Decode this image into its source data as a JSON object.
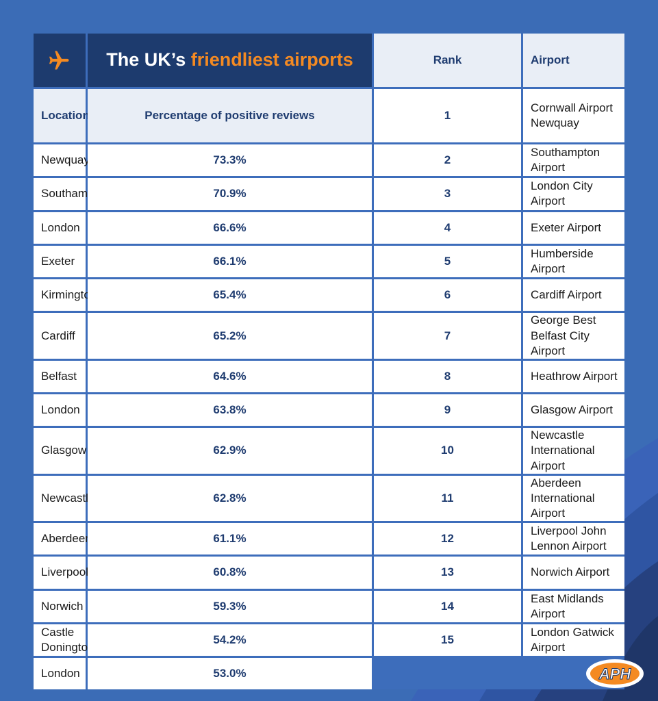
{
  "title": {
    "prefix": "The UK’s ",
    "highlight": "friendliest airports",
    "icon": "airplane-icon"
  },
  "colors": {
    "background": "#3b6cb6",
    "header": "#1d3b6e",
    "accent": "#f48a22",
    "text": "#1f3c70"
  },
  "columns": [
    "Rank",
    "Airport",
    "Location",
    "Percentage of positive reviews"
  ],
  "rows": [
    [
      "1",
      "Cornwall Airport Newquay",
      "Newquay",
      "73.3%"
    ],
    [
      "2",
      "Southampton Airport",
      "Southampton",
      "70.9%"
    ],
    [
      "3",
      "London City Airport",
      "London",
      "66.6%"
    ],
    [
      "4",
      "Exeter Airport",
      "Exeter",
      "66.1%"
    ],
    [
      "5",
      "Humberside Airport",
      "Kirmington",
      "65.4%"
    ],
    [
      "6",
      "Cardiff Airport",
      "Cardiff",
      "65.2%"
    ],
    [
      "7",
      "George Best Belfast City Airport",
      "Belfast",
      "64.6%"
    ],
    [
      "8",
      "Heathrow Airport",
      "London",
      "63.8%"
    ],
    [
      "9",
      "Glasgow Airport",
      "Glasgow",
      "62.9%"
    ],
    [
      "10",
      "Newcastle International Airport",
      "Newcastle",
      "62.8%"
    ],
    [
      "11",
      "Aberdeen International Airport",
      "Aberdeen",
      "61.1%"
    ],
    [
      "12",
      "Liverpool John Lennon Airport",
      "Liverpool",
      "60.8%"
    ],
    [
      "13",
      "Norwich Airport",
      "Norwich",
      "59.3%"
    ],
    [
      "14",
      "East Midlands Airport",
      "Castle Donington",
      "54.2%"
    ],
    [
      "15",
      "London Gatwick Airport",
      "London",
      "53.0%"
    ]
  ],
  "logo": {
    "text": "APH"
  }
}
